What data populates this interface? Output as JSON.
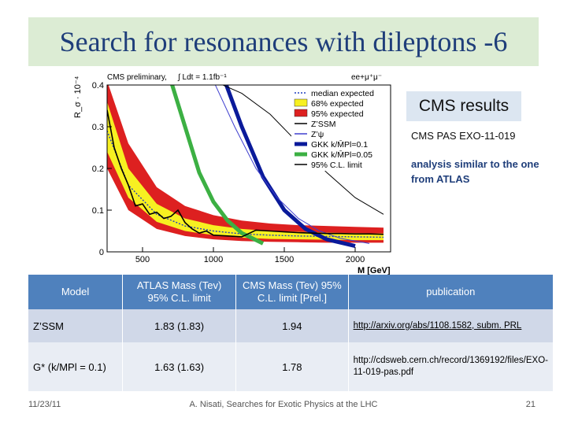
{
  "slide": {
    "title": "Search for resonances with dileptons -6",
    "cms_results": "CMS results",
    "cms_pas": "CMS PAS EXO-11-019",
    "analysis_note": "analysis similar  to the one from ATLAS",
    "footer_date": "11/23/11",
    "footer_center": "A. Nisati, Searches for Exotic Physics at the LHC",
    "page_number": "21"
  },
  "table": {
    "headers": {
      "model": "Model",
      "atlas": "ATLAS Mass (Tev) 95% C.L. limit",
      "cms": "CMS Mass (Tev) 95% C.L. limit [Prel.]",
      "publication": "publication"
    },
    "rows": [
      {
        "model": "Z’SSM",
        "atlas": "1.83 (1.83)",
        "cms": "1.94",
        "publication": "http://arxiv.org/abs/1108.1582, subm. PRL"
      },
      {
        "model": "G* (k/MPl = 0.1)",
        "atlas": "1.63 (1.63)",
        "cms": "1.78",
        "publication": "http://cdsweb.cern.ch/record/1369192/files/EXO-11-019-pas.pdf"
      }
    ]
  },
  "chart_data": {
    "type": "line",
    "header_left": "CMS preliminary,",
    "header_lumi": "∫ Ldt = 1.1fb⁻¹",
    "header_channel": "ee+μ⁺μ⁻",
    "ylabel": "R_σ · 10⁻⁴",
    "xlabel": "M [GeV]",
    "xlim": [
      250,
      2250
    ],
    "ylim": [
      0,
      0.4
    ],
    "x_ticks": [
      "500",
      "1000",
      "1500",
      "2000"
    ],
    "y_ticks": [
      "0",
      "0.1",
      "0.2",
      "0.3",
      "0.4"
    ],
    "legend": [
      {
        "label": "median expected",
        "style": "dotted",
        "color": "#1f3fbf"
      },
      {
        "label": "68% expected",
        "style": "band",
        "color": "#f7f021"
      },
      {
        "label": "95% expected",
        "style": "band",
        "color": "#dd2020"
      },
      {
        "label": "Z’SSM",
        "style": "line",
        "color": "#000000"
      },
      {
        "label": "Z’ψ",
        "style": "line",
        "color": "#3f3fcf"
      },
      {
        "label": "GKK k/M̄Pl=0.1",
        "style": "thick",
        "color": "#0a1a9a"
      },
      {
        "label": "GKK k/M̄Pl=0.05",
        "style": "thick",
        "color": "#3cb043"
      },
      {
        "label": "95% C.L. limit",
        "style": "line",
        "color": "#000000"
      }
    ],
    "colors": {
      "band95": "#dd2020",
      "band68": "#f7f021",
      "zssm": "#000000",
      "zpsi": "#3f3fcf",
      "gkk01": "#0a1a9a",
      "gkk005": "#3cb043",
      "median": "#1f3fbf",
      "limit": "#000000"
    },
    "series": [
      {
        "name": "median expected",
        "x": [
          250,
          400,
          600,
          800,
          1000,
          1200,
          1400,
          1600,
          1800,
          2000,
          2200
        ],
        "y": [
          0.29,
          0.16,
          0.09,
          0.062,
          0.05,
          0.043,
          0.04,
          0.038,
          0.037,
          0.036,
          0.035
        ]
      },
      {
        "name": "68% expected",
        "x": [
          250,
          400,
          600,
          800,
          1000,
          1200,
          1400,
          1600,
          1800,
          2000,
          2200
        ],
        "y_low": [
          0.24,
          0.13,
          0.072,
          0.05,
          0.04,
          0.034,
          0.031,
          0.03,
          0.029,
          0.028,
          0.028
        ],
        "y_high": [
          0.36,
          0.2,
          0.115,
          0.08,
          0.064,
          0.055,
          0.05,
          0.048,
          0.046,
          0.045,
          0.044
        ]
      },
      {
        "name": "95% expected",
        "x": [
          250,
          400,
          600,
          800,
          1000,
          1200,
          1400,
          1600,
          1800,
          2000,
          2200
        ],
        "y_low": [
          0.2,
          0.1,
          0.055,
          0.038,
          0.03,
          0.026,
          0.024,
          0.023,
          0.022,
          0.022,
          0.022
        ],
        "y_high": [
          0.45,
          0.26,
          0.155,
          0.11,
          0.088,
          0.075,
          0.068,
          0.064,
          0.062,
          0.06,
          0.058
        ]
      },
      {
        "name": "Z’SSM",
        "x": [
          1000,
          1200,
          1400,
          1600,
          1800,
          2000,
          2200
        ],
        "y": [
          0.43,
          0.38,
          0.33,
          0.26,
          0.19,
          0.13,
          0.09
        ]
      },
      {
        "name": "Z’ψ",
        "x": [
          1000,
          1150,
          1300,
          1450,
          1600,
          1750,
          1900,
          2100
        ],
        "y": [
          0.43,
          0.3,
          0.2,
          0.13,
          0.08,
          0.05,
          0.032,
          0.02
        ]
      },
      {
        "name": "GKK k/M̄Pl=0.1",
        "x": [
          1080,
          1200,
          1350,
          1500,
          1650,
          1800,
          2000
        ],
        "y": [
          0.43,
          0.3,
          0.18,
          0.1,
          0.055,
          0.03,
          0.014
        ]
      },
      {
        "name": "GKK k/M̄Pl=0.05",
        "x": [
          700,
          800,
          900,
          1000,
          1100,
          1200,
          1350
        ],
        "y": [
          0.43,
          0.3,
          0.19,
          0.12,
          0.075,
          0.045,
          0.02
        ]
      },
      {
        "name": "95% C.L. limit",
        "x": [
          250,
          300,
          350,
          400,
          450,
          500,
          550,
          600,
          650,
          700,
          750,
          800,
          850,
          900,
          950,
          1000,
          1100,
          1200,
          1300,
          1400,
          1500,
          1600,
          1700,
          1800,
          1900,
          2000,
          2100,
          2200
        ],
        "y": [
          0.34,
          0.25,
          0.2,
          0.16,
          0.11,
          0.115,
          0.09,
          0.095,
          0.08,
          0.085,
          0.1,
          0.07,
          0.055,
          0.045,
          0.05,
          0.04,
          0.038,
          0.036,
          0.052,
          0.05,
          0.048,
          0.046,
          0.045,
          0.044,
          0.044,
          0.043,
          0.043,
          0.042
        ]
      }
    ]
  }
}
